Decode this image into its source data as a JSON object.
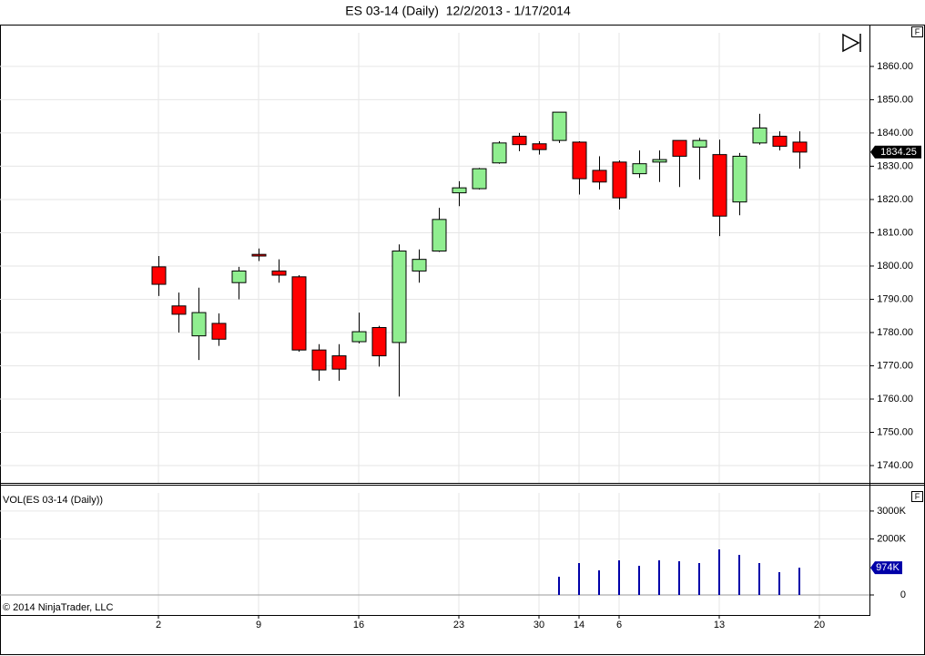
{
  "chart_data": [
    {
      "type": "candlestick",
      "title": "ES 03-14 (Daily)  12/2/2013 - 1/17/2014",
      "panel_label": "F",
      "categories": [
        "2",
        null,
        null,
        null,
        null,
        "9",
        null,
        null,
        null,
        null,
        "16",
        null,
        null,
        null,
        null,
        "23",
        null,
        null,
        null,
        "30",
        null,
        "14",
        null,
        "6",
        null,
        null,
        null,
        null,
        "13",
        null,
        null,
        null,
        null,
        "20"
      ],
      "open": [
        1799.75,
        1788,
        1779,
        1782.75,
        1795,
        1803.5,
        1798.5,
        1796.75,
        1774.75,
        1773,
        1777.25,
        1781.5,
        1777,
        1798.5,
        1804.5,
        1822,
        1823.25,
        1831,
        1839,
        1836.75,
        1837.75,
        1837.25,
        1828.75,
        1831.25,
        1827.75,
        1831.25,
        1837.75,
        1835.75,
        1833.5,
        1819.25,
        1837,
        1839,
        1837.25,
        null
      ],
      "high": [
        1803,
        1792,
        1793.5,
        1785.75,
        1799.75,
        1805.25,
        1802,
        1797.25,
        1776.5,
        1776.5,
        1786,
        1782,
        1806.5,
        1805,
        1817.5,
        1825.5,
        1829.5,
        1837.5,
        1840,
        1837.5,
        1846.25,
        1837.5,
        1833,
        1831.75,
        1834.75,
        1834.75,
        1837.75,
        1838.5,
        1838,
        1834,
        1845.75,
        1840.5,
        1840.5,
        null
      ],
      "low": [
        1791,
        1780,
        1771.75,
        1776,
        1790,
        1801.5,
        1795,
        1774.25,
        1765.5,
        1765.5,
        1776.75,
        1769.75,
        1760.75,
        1795,
        1804.25,
        1818,
        1823,
        1830.75,
        1834.5,
        1833.5,
        1837,
        1821.5,
        1823,
        1817,
        1826.5,
        1825.25,
        1823.75,
        1826,
        1809,
        1815.25,
        1836.5,
        1834.75,
        1829.25,
        null
      ],
      "close": [
        1794.5,
        1785.5,
        1786,
        1778,
        1798.5,
        1803,
        1797.25,
        1774.75,
        1768.75,
        1769,
        1780.25,
        1773,
        1804.5,
        1802,
        1814,
        1823.5,
        1829.25,
        1837,
        1836.5,
        1835,
        1846.25,
        1826.25,
        1825.25,
        1820.5,
        1830.75,
        1832,
        1833,
        1837.75,
        1815,
        1833,
        1841.5,
        1836,
        1834.25,
        null
      ],
      "up_color": "#90ee90",
      "down_color": "#ff0000",
      "ylim": [
        1734.8,
        1872.3
      ],
      "yticks": [
        {
          "value": 1740,
          "label": "1740.00"
        },
        {
          "value": 1750,
          "label": "1750.00"
        },
        {
          "value": 1760,
          "label": "1760.00"
        },
        {
          "value": 1770,
          "label": "1770.00"
        },
        {
          "value": 1780,
          "label": "1780.00"
        },
        {
          "value": 1790,
          "label": "1790.00"
        },
        {
          "value": 1800,
          "label": "1800.00"
        },
        {
          "value": 1810,
          "label": "1810.00"
        },
        {
          "value": 1820,
          "label": "1820.00"
        },
        {
          "value": 1830,
          "label": "1830.00"
        },
        {
          "value": 1840,
          "label": "1840.00"
        },
        {
          "value": 1850,
          "label": "1850.00"
        },
        {
          "value": 1860,
          "label": "1860.00"
        }
      ],
      "grid": true
    },
    {
      "type": "bar",
      "title": "VOL(ES 03-14 (Daily))",
      "panel_label": "F",
      "values": [
        null,
        null,
        null,
        null,
        null,
        null,
        null,
        null,
        null,
        null,
        null,
        null,
        null,
        null,
        null,
        null,
        null,
        null,
        null,
        null,
        651000,
        1140000,
        880000,
        1238000,
        1042000,
        1238000,
        1205000,
        1140000,
        1629000,
        1433000,
        1140000,
        814000,
        974000,
        null
      ],
      "value_labels": [
        null,
        null,
        null,
        null,
        null,
        null,
        null,
        null,
        null,
        null,
        null,
        null,
        null,
        null,
        null,
        null,
        null,
        null,
        null,
        null,
        null,
        null,
        null,
        null,
        null,
        null,
        null,
        null,
        null,
        null,
        null,
        null,
        "974K",
        null
      ],
      "color": "#0000a8",
      "ylim": [
        -717000,
        3909000
      ],
      "yticks": [
        {
          "value": 0,
          "label": "0"
        },
        {
          "value": 2000000,
          "label": "2000K"
        },
        {
          "value": 3000000,
          "label": "3000K"
        }
      ],
      "grid": true
    }
  ],
  "footer": "© 2014 NinjaTrader, LLC"
}
